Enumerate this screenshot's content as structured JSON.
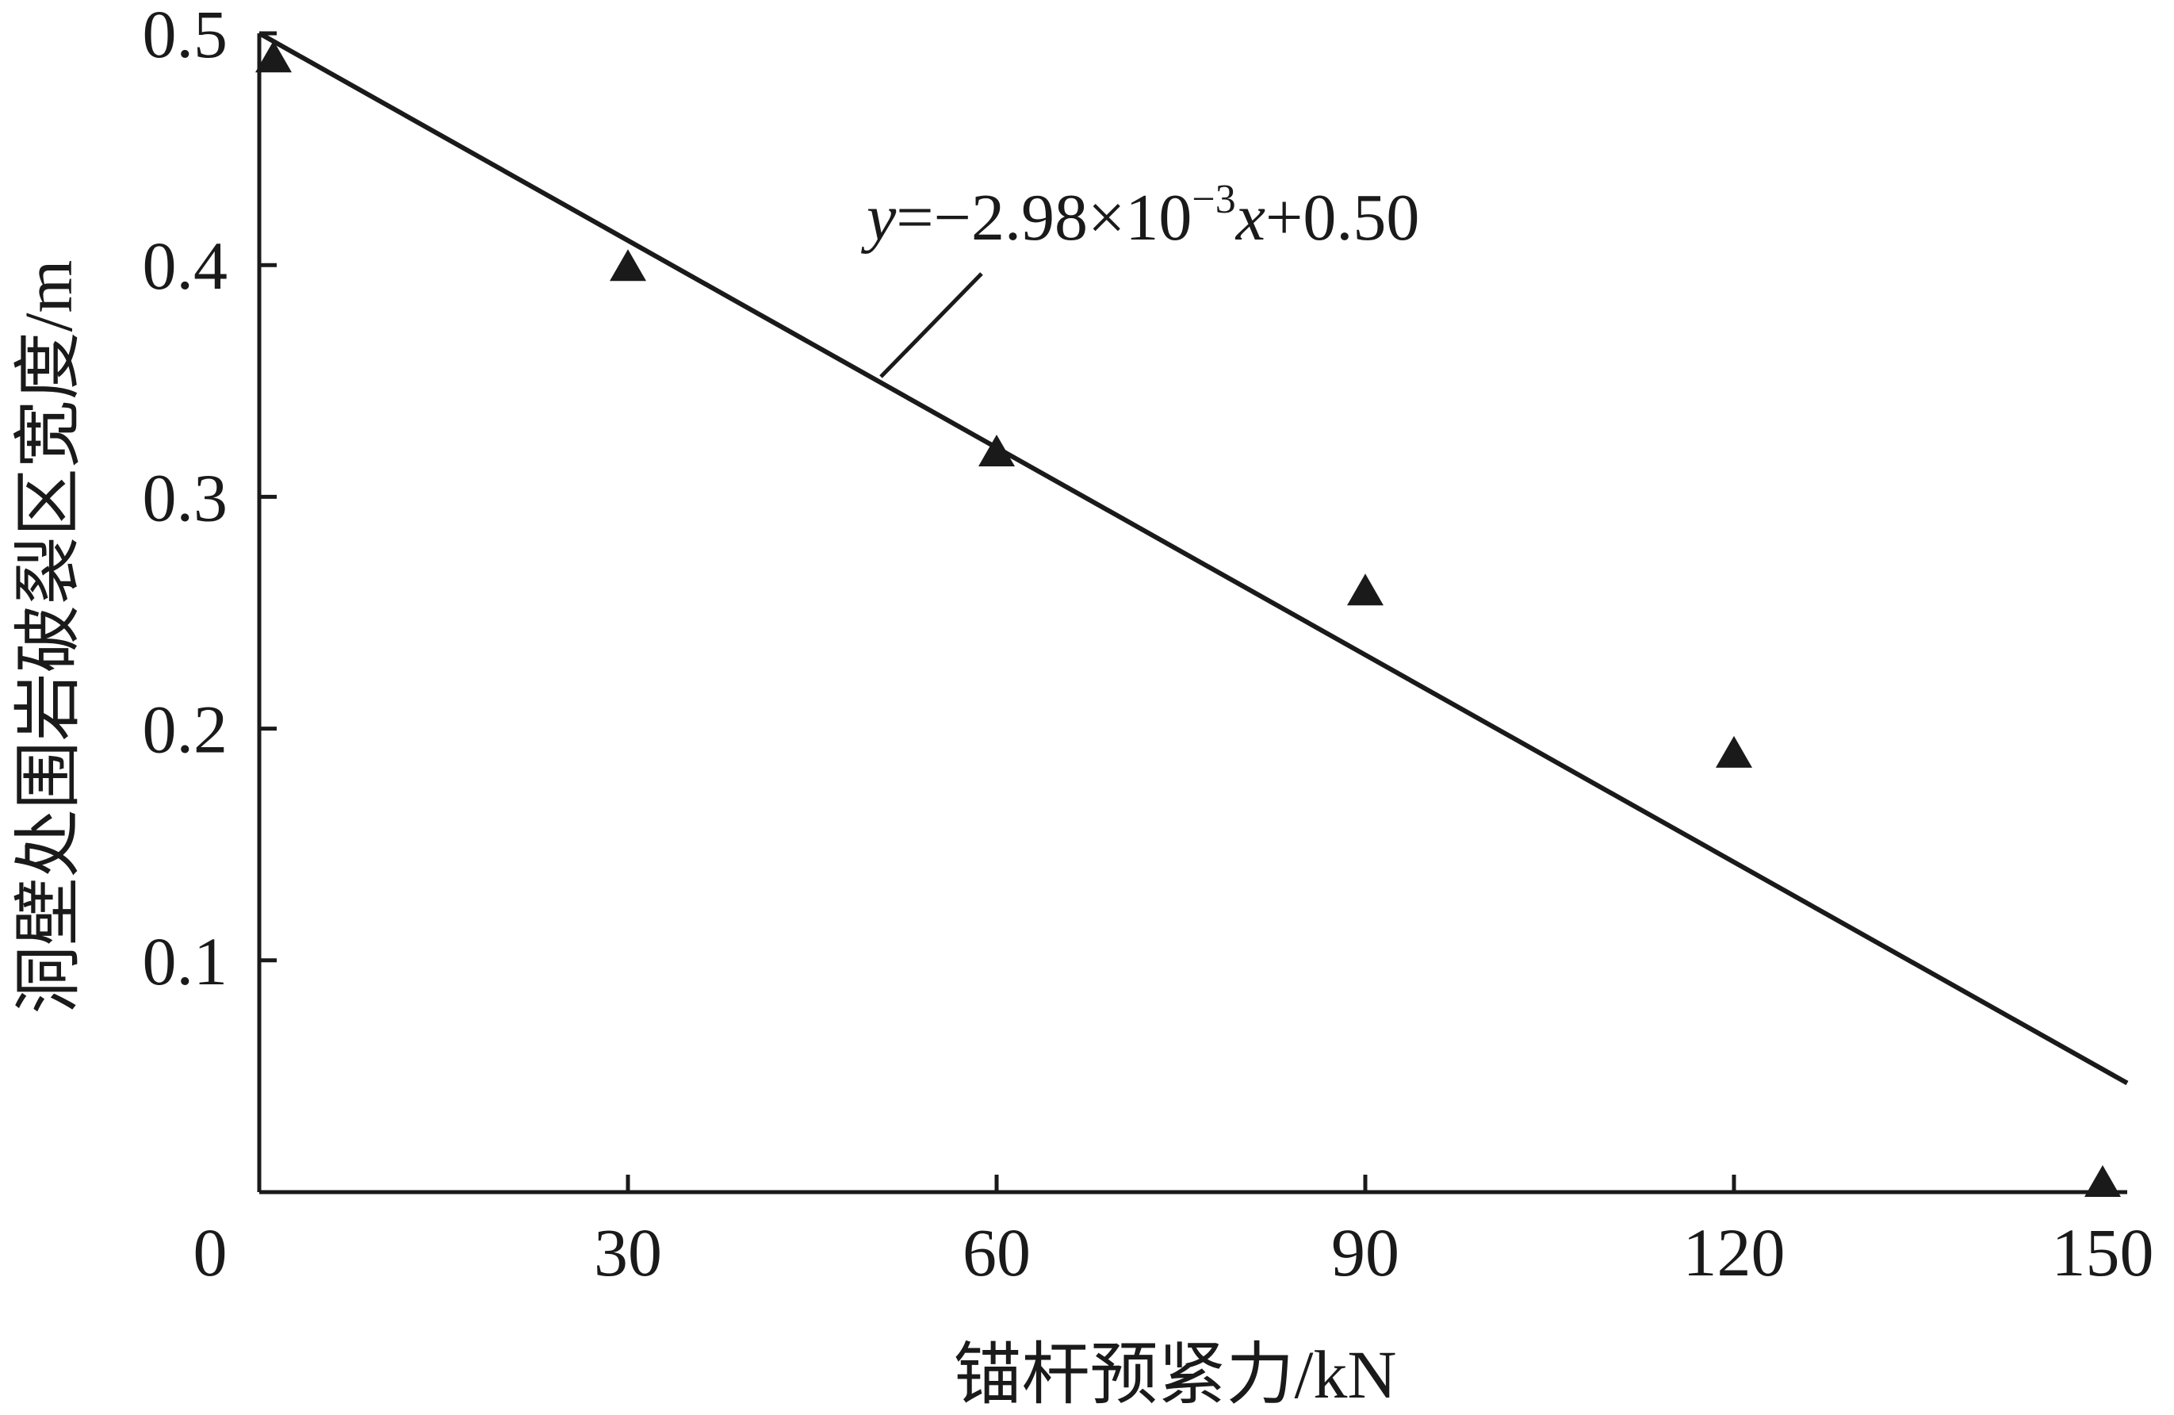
{
  "chart_data": {
    "type": "scatter",
    "title": "",
    "xlabel": "锚杆预紧力/kN",
    "ylabel": "洞壁处围岩破裂区宽度/m",
    "xlim": [
      0,
      152
    ],
    "ylim": [
      0,
      0.5
    ],
    "x_ticks": [
      0,
      30,
      60,
      90,
      120,
      150
    ],
    "y_ticks": [
      0.1,
      0.2,
      0.3,
      0.4,
      0.5
    ],
    "x_tick_labels": [
      "0",
      "30",
      "60",
      "90",
      "120",
      "150"
    ],
    "y_tick_labels": [
      "0.1",
      "0.2",
      "0.3",
      "0.4",
      "0.5"
    ],
    "grid": false,
    "legend": "none",
    "series": [
      {
        "marker": "triangle",
        "x": [
          0,
          30,
          60,
          90,
          120,
          150
        ],
        "y": [
          0.49,
          0.4,
          0.32,
          0.26,
          0.19,
          0.005
        ]
      }
    ],
    "fit_line": {
      "slope": -0.00298,
      "intercept": 0.5,
      "x_range": [
        0,
        152
      ]
    },
    "annotation": {
      "text_var_y": "y",
      "text_eq": "=−2.98×10",
      "text_exp": "−3",
      "text_var_x": "x",
      "text_tail": "+0.50"
    },
    "colors": {
      "ink": "#1a1a1a",
      "background": "#ffffff"
    }
  }
}
